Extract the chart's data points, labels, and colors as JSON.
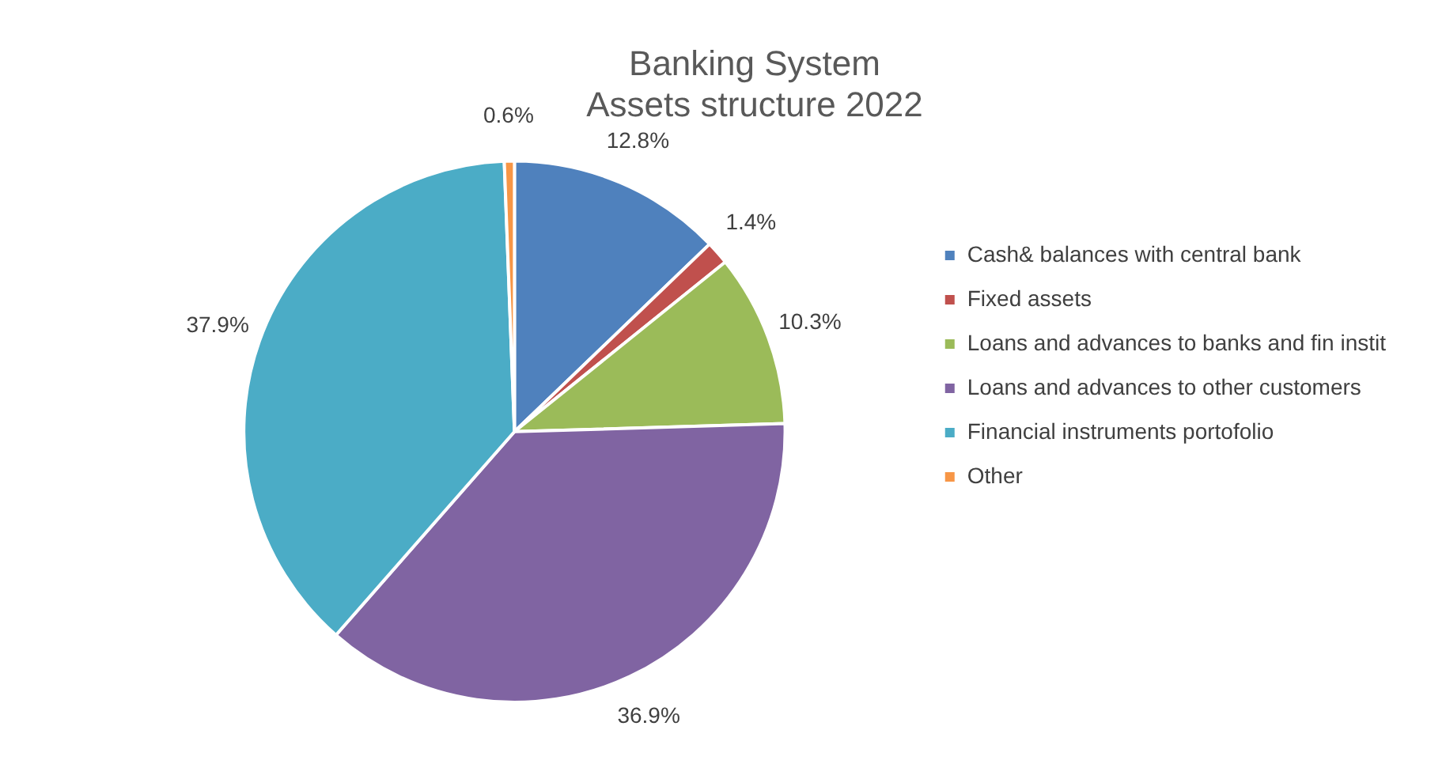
{
  "chart_data": {
    "type": "pie",
    "title": "Banking System\nAssets structure 2022",
    "categories": [
      "Cash& balances with central bank",
      "Fixed assets",
      "Loans and advances to banks and fin instit",
      "Loans and advances to other customers",
      "Financial instruments portofolio",
      "Other"
    ],
    "values": [
      12.8,
      1.4,
      10.3,
      36.9,
      37.9,
      0.6
    ],
    "value_labels": [
      "12.8%",
      "1.4%",
      "10.3%",
      "36.9%",
      "37.9%",
      "0.6%"
    ],
    "colors": [
      "#4f81bd",
      "#c0504d",
      "#9bbb59",
      "#8064a2",
      "#4bacc6",
      "#f79646"
    ],
    "legend": "right"
  }
}
